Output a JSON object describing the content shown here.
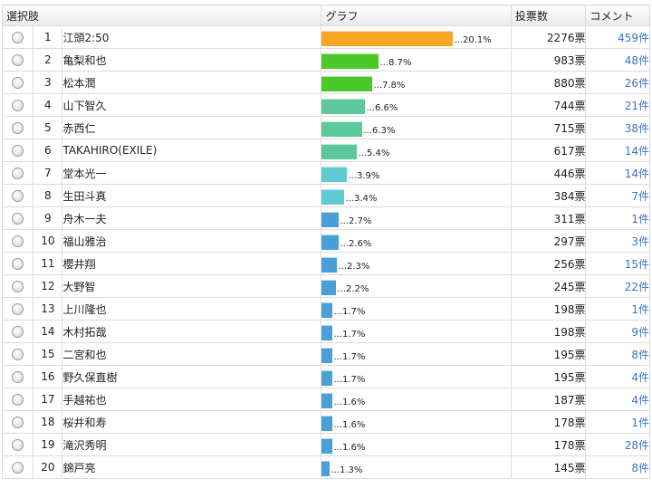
{
  "header": {
    "choice": "選択肢",
    "graph": "グラフ",
    "votes": "投票数",
    "comment": "コメント"
  },
  "colors": {
    "orange": "#f5a623",
    "green": "#4cc92a",
    "teal": "#5cc89c",
    "cyan": "#5fcbd0",
    "blue": "#4a9fd6"
  },
  "rows": [
    {
      "rank": "1",
      "name": "江頭2:50",
      "pct_label": "...20.1%",
      "percent": 20.1,
      "color": "#f5a623",
      "votes": "2276票",
      "comments": "459件"
    },
    {
      "rank": "2",
      "name": "亀梨和也",
      "pct_label": "...8.7%",
      "percent": 8.7,
      "color": "#4cc92a",
      "votes": "983票",
      "comments": "48件"
    },
    {
      "rank": "3",
      "name": "松本潤",
      "pct_label": "...7.8%",
      "percent": 7.8,
      "color": "#4cc92a",
      "votes": "880票",
      "comments": "26件"
    },
    {
      "rank": "4",
      "name": "山下智久",
      "pct_label": "...6.6%",
      "percent": 6.6,
      "color": "#5cc89c",
      "votes": "744票",
      "comments": "21件"
    },
    {
      "rank": "5",
      "name": "赤西仁",
      "pct_label": "...6.3%",
      "percent": 6.3,
      "color": "#5cc89c",
      "votes": "715票",
      "comments": "38件"
    },
    {
      "rank": "6",
      "name": "TAKAHIRO(EXILE)",
      "pct_label": "...5.4%",
      "percent": 5.4,
      "color": "#5cc89c",
      "votes": "617票",
      "comments": "14件"
    },
    {
      "rank": "7",
      "name": "堂本光一",
      "pct_label": "...3.9%",
      "percent": 3.9,
      "color": "#5fcbd0",
      "votes": "446票",
      "comments": "14件"
    },
    {
      "rank": "8",
      "name": "生田斗真",
      "pct_label": "...3.4%",
      "percent": 3.4,
      "color": "#5fcbd0",
      "votes": "384票",
      "comments": "7件"
    },
    {
      "rank": "9",
      "name": "舟木一夫",
      "pct_label": "...2.7%",
      "percent": 2.7,
      "color": "#4a9fd6",
      "votes": "311票",
      "comments": "1件"
    },
    {
      "rank": "10",
      "name": "福山雅治",
      "pct_label": "...2.6%",
      "percent": 2.6,
      "color": "#4a9fd6",
      "votes": "297票",
      "comments": "3件"
    },
    {
      "rank": "11",
      "name": "櫻井翔",
      "pct_label": "...2.3%",
      "percent": 2.3,
      "color": "#4a9fd6",
      "votes": "256票",
      "comments": "15件"
    },
    {
      "rank": "12",
      "name": "大野智",
      "pct_label": "...2.2%",
      "percent": 2.2,
      "color": "#4a9fd6",
      "votes": "245票",
      "comments": "22件"
    },
    {
      "rank": "13",
      "name": "上川隆也",
      "pct_label": "...1.7%",
      "percent": 1.7,
      "color": "#4a9fd6",
      "votes": "198票",
      "comments": "1件"
    },
    {
      "rank": "14",
      "name": "木村拓哉",
      "pct_label": "...1.7%",
      "percent": 1.7,
      "color": "#4a9fd6",
      "votes": "198票",
      "comments": "9件"
    },
    {
      "rank": "15",
      "name": "二宮和也",
      "pct_label": "...1.7%",
      "percent": 1.7,
      "color": "#4a9fd6",
      "votes": "195票",
      "comments": "8件"
    },
    {
      "rank": "16",
      "name": "野久保直樹",
      "pct_label": "...1.7%",
      "percent": 1.7,
      "color": "#4a9fd6",
      "votes": "195票",
      "comments": "4件"
    },
    {
      "rank": "17",
      "name": "手越祐也",
      "pct_label": "...1.6%",
      "percent": 1.6,
      "color": "#4a9fd6",
      "votes": "187票",
      "comments": "4件"
    },
    {
      "rank": "18",
      "name": "桜井和寿",
      "pct_label": "...1.6%",
      "percent": 1.6,
      "color": "#4a9fd6",
      "votes": "178票",
      "comments": "1件"
    },
    {
      "rank": "19",
      "name": "滝沢秀明",
      "pct_label": "...1.6%",
      "percent": 1.6,
      "color": "#4a9fd6",
      "votes": "178票",
      "comments": "28件"
    },
    {
      "rank": "20",
      "name": "錦戸亮",
      "pct_label": "...1.3%",
      "percent": 1.3,
      "color": "#4a9fd6",
      "votes": "145票",
      "comments": "8件"
    }
  ]
}
